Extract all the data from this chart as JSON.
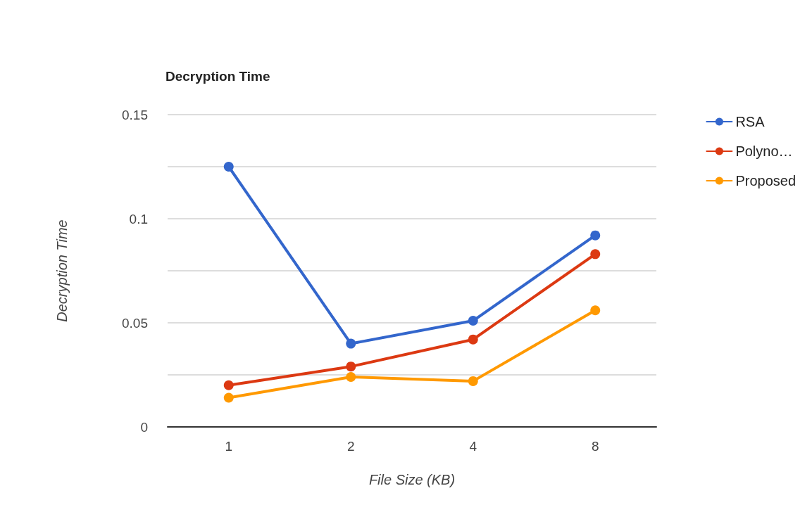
{
  "chart_data": {
    "type": "line",
    "title": "Decryption Time",
    "xlabel": "File Size (KB)",
    "ylabel": "Decryption Time",
    "categories": [
      "1",
      "2",
      "4",
      "8"
    ],
    "series": [
      {
        "name": "RSA",
        "color": "#3366cc",
        "values": [
          0.125,
          0.04,
          0.051,
          0.092
        ]
      },
      {
        "name": "Polyno…",
        "color": "#dc3912",
        "values": [
          0.02,
          0.029,
          0.042,
          0.083
        ]
      },
      {
        "name": "Proposed",
        "color": "#ff9900",
        "values": [
          0.014,
          0.024,
          0.022,
          0.056
        ]
      }
    ],
    "ylim": [
      0,
      0.15
    ],
    "yticks": [
      0,
      {
        "value": 0.025,
        "label": null
      },
      0.05,
      {
        "value": 0.075,
        "label": null
      },
      0.1,
      {
        "value": 0.125,
        "label": null
      },
      0.15
    ],
    "grid": "y",
    "legend": "right",
    "marker": "circle",
    "line_style": "solid"
  }
}
